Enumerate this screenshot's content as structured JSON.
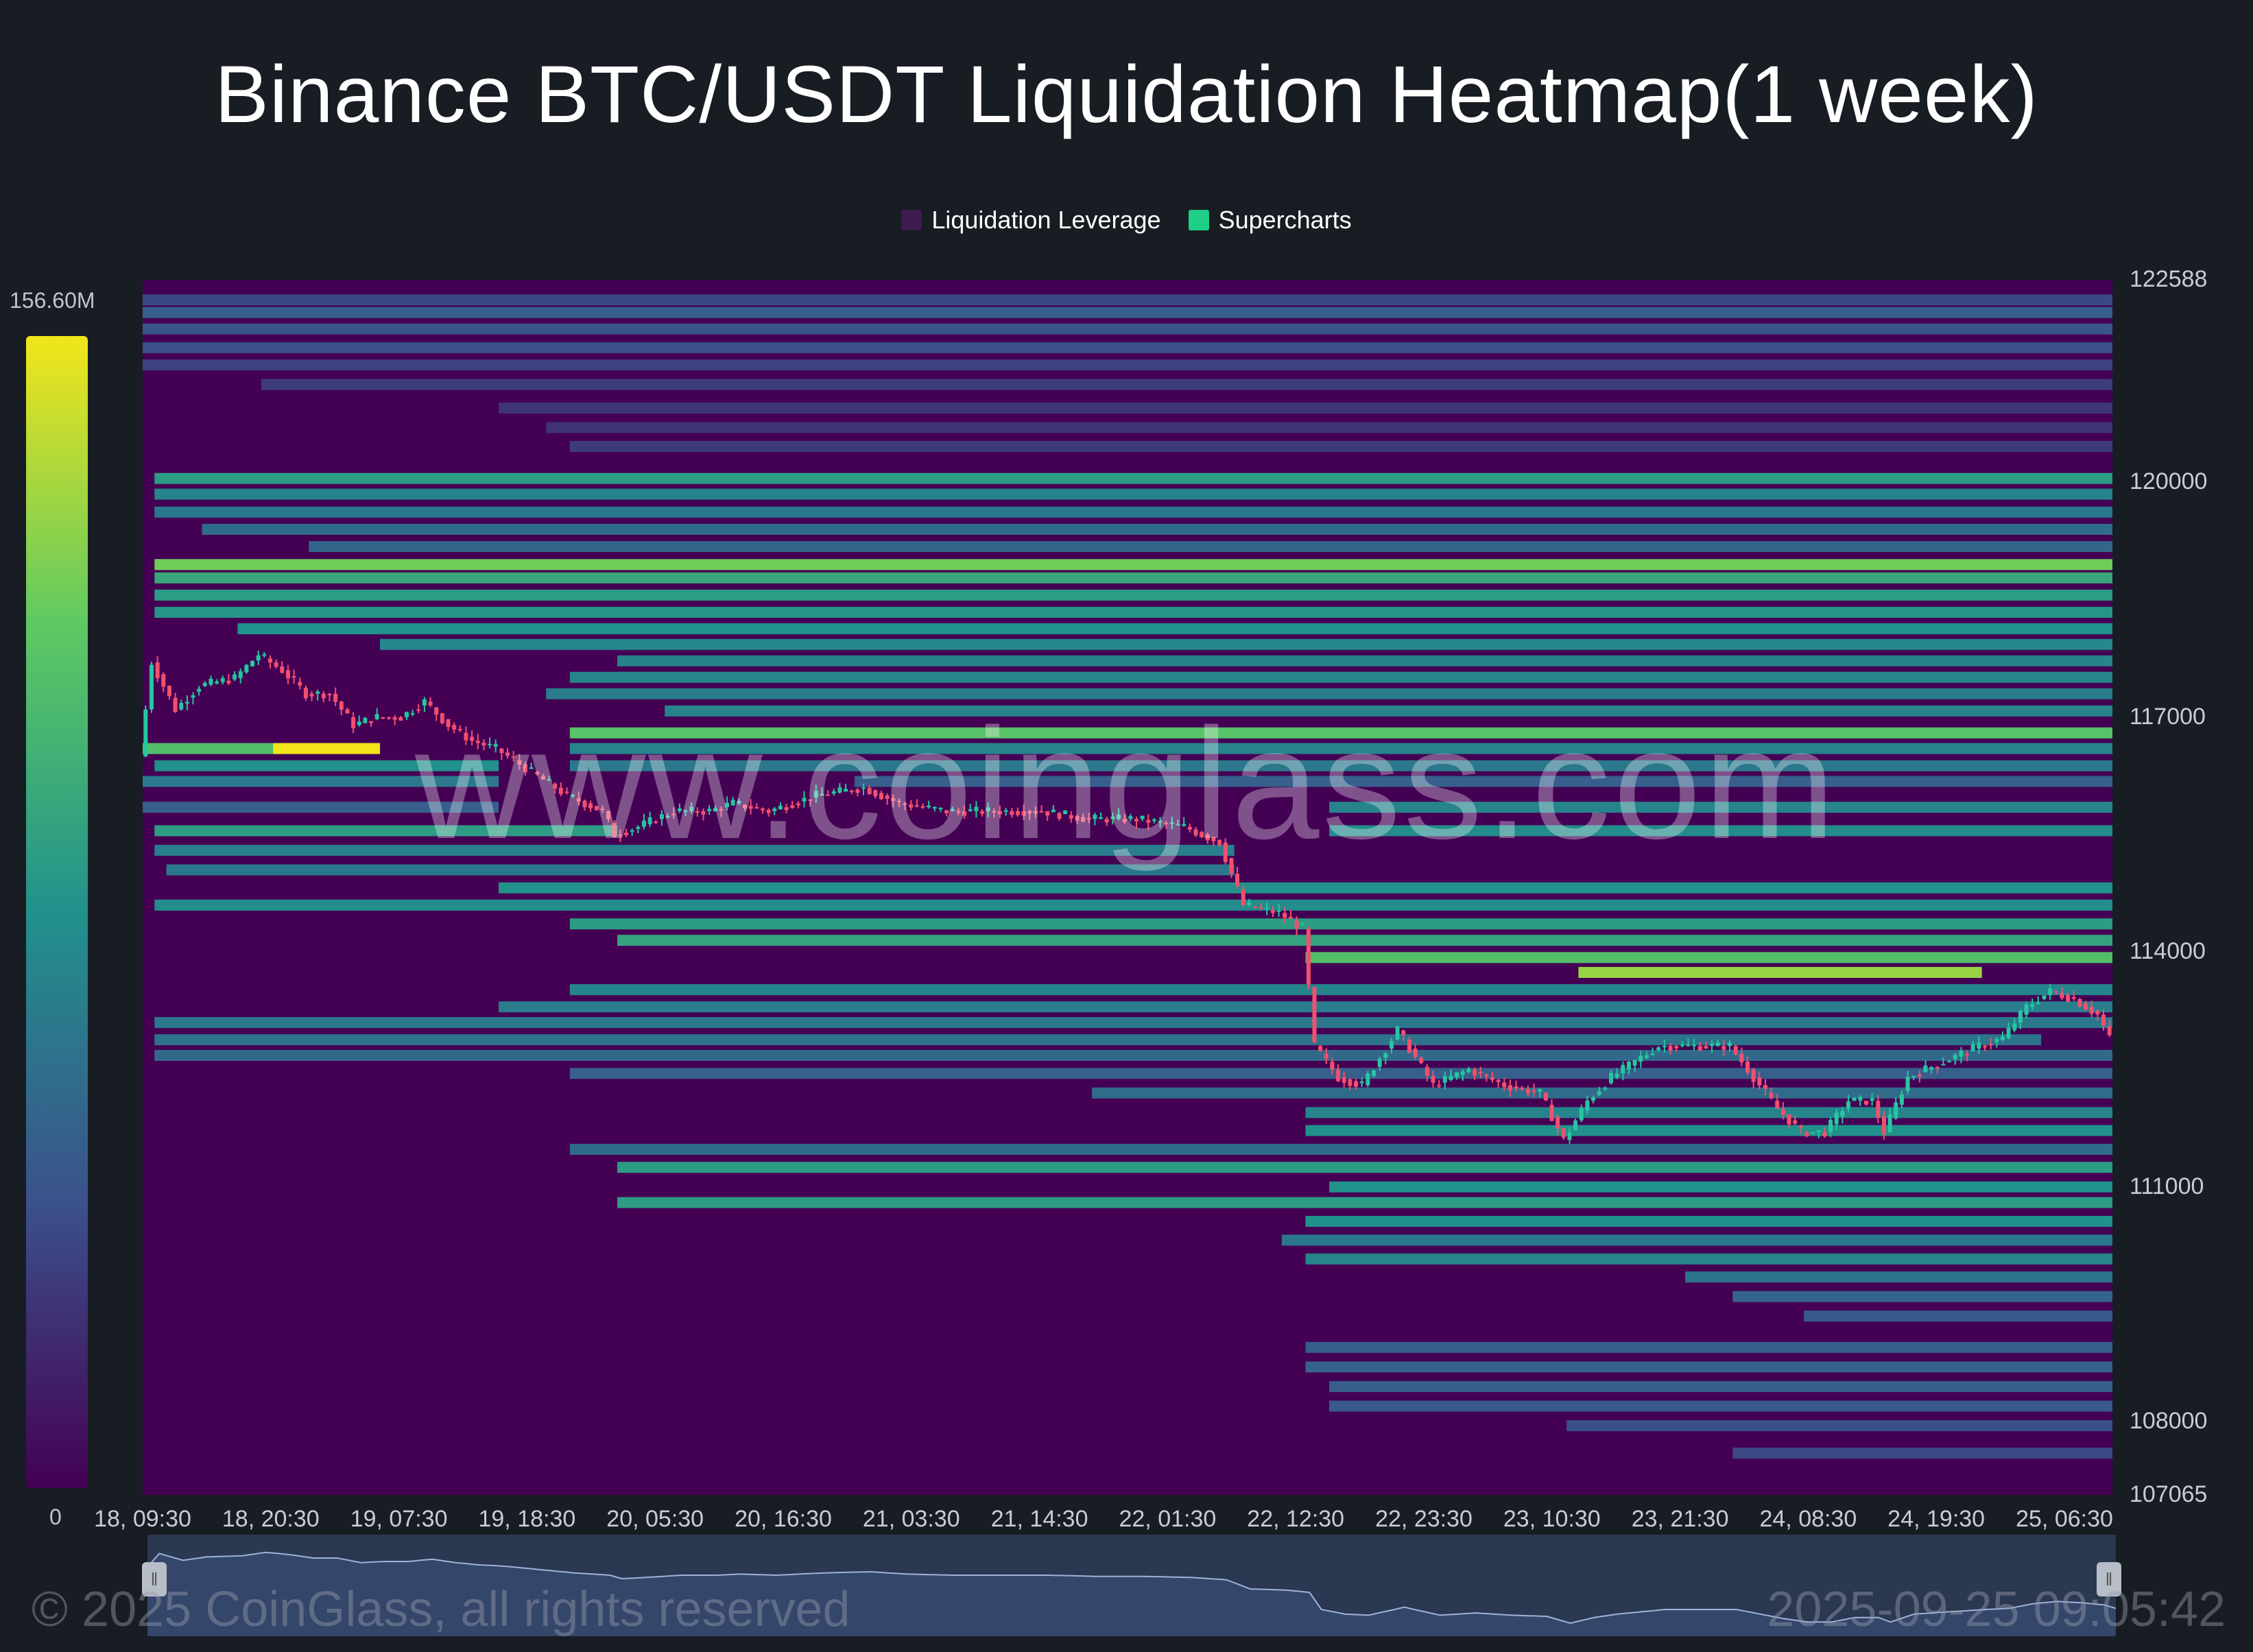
{
  "title": "Binance BTC/USDT Liquidation Heatmap(1 week)",
  "legend": [
    {
      "label": "Liquidation Leverage",
      "color": "#3d1a4f"
    },
    {
      "label": "Supercharts",
      "color": "#1ecf85"
    }
  ],
  "colorbar": {
    "max_label": "156.60M",
    "min_label": "0"
  },
  "watermark": "www.coinglass.com",
  "footer": {
    "copyright": "© 2025 CoinGlass, all rights reserved",
    "timestamp": "2025-09-25 09:05:42"
  },
  "colors": {
    "background": "#181c23",
    "heat_low": "#440154",
    "heat_high": "#f2e51a",
    "candle_up": "#26c6a0",
    "candle_down": "#f2506e"
  },
  "chart_data": {
    "type": "heatmap",
    "y_ticks": [
      122588,
      120000,
      117000,
      114000,
      111000,
      108000,
      107065
    ],
    "ylim": [
      107065,
      122588
    ],
    "x_ticks": [
      "18, 09:30",
      "18, 20:30",
      "19, 07:30",
      "19, 18:30",
      "20, 05:30",
      "20, 16:30",
      "21, 03:30",
      "21, 14:30",
      "22, 01:30",
      "22, 12:30",
      "22, 23:30",
      "23, 10:30",
      "23, 21:30",
      "24, 08:30",
      "24, 19:30",
      "25, 06:30"
    ],
    "xlim_hours": [
      0,
      166
    ],
    "colorscale_max": 156.6,
    "price_path": [
      [
        0,
        116500
      ],
      [
        1,
        117700
      ],
      [
        3,
        117100
      ],
      [
        5,
        117400
      ],
      [
        8,
        117500
      ],
      [
        10,
        117800
      ],
      [
        12,
        117600
      ],
      [
        14,
        117300
      ],
      [
        16,
        117300
      ],
      [
        18,
        116900
      ],
      [
        20,
        117000
      ],
      [
        22,
        117000
      ],
      [
        24,
        117200
      ],
      [
        26,
        116900
      ],
      [
        28,
        116700
      ],
      [
        30,
        116600
      ],
      [
        33,
        116300
      ],
      [
        36,
        116000
      ],
      [
        39,
        115800
      ],
      [
        40,
        115500
      ],
      [
        42,
        115600
      ],
      [
        45,
        115800
      ],
      [
        48,
        115800
      ],
      [
        50,
        115900
      ],
      [
        53,
        115800
      ],
      [
        57,
        116000
      ],
      [
        61,
        116100
      ],
      [
        64,
        115900
      ],
      [
        68,
        115800
      ],
      [
        72,
        115800
      ],
      [
        76,
        115800
      ],
      [
        80,
        115700
      ],
      [
        84,
        115700
      ],
      [
        88,
        115600
      ],
      [
        91,
        115400
      ],
      [
        93,
        114600
      ],
      [
        96,
        114500
      ],
      [
        98,
        114300
      ],
      [
        99,
        112800
      ],
      [
        101,
        112400
      ],
      [
        103,
        112300
      ],
      [
        106,
        113000
      ],
      [
        109,
        112300
      ],
      [
        112,
        112500
      ],
      [
        115,
        112300
      ],
      [
        118,
        112200
      ],
      [
        120,
        111600
      ],
      [
        122,
        112100
      ],
      [
        124,
        112400
      ],
      [
        126,
        112600
      ],
      [
        128,
        112800
      ],
      [
        131,
        112800
      ],
      [
        134,
        112800
      ],
      [
        136,
        112400
      ],
      [
        138,
        112000
      ],
      [
        140,
        111700
      ],
      [
        142,
        111700
      ],
      [
        144,
        112100
      ],
      [
        146,
        112100
      ],
      [
        147,
        111700
      ],
      [
        149,
        112400
      ],
      [
        152,
        112600
      ],
      [
        155,
        112800
      ],
      [
        157,
        112900
      ],
      [
        159,
        113300
      ],
      [
        161,
        113500
      ],
      [
        163,
        113400
      ],
      [
        165,
        113200
      ],
      [
        166,
        112900
      ]
    ],
    "liquidation_bands": [
      {
        "price": 122330,
        "from_h": 0,
        "to_h": 166,
        "intensity": 0.22
      },
      {
        "price": 122170,
        "from_h": 0,
        "to_h": 166,
        "intensity": 0.3
      },
      {
        "price": 121960,
        "from_h": 0,
        "to_h": 166,
        "intensity": 0.26
      },
      {
        "price": 121720,
        "from_h": 0,
        "to_h": 166,
        "intensity": 0.24
      },
      {
        "price": 121500,
        "from_h": 0,
        "to_h": 166,
        "intensity": 0.2
      },
      {
        "price": 121250,
        "from_h": 10,
        "to_h": 166,
        "intensity": 0.18
      },
      {
        "price": 120950,
        "from_h": 30,
        "to_h": 166,
        "intensity": 0.16
      },
      {
        "price": 120700,
        "from_h": 34,
        "to_h": 166,
        "intensity": 0.15
      },
      {
        "price": 120460,
        "from_h": 36,
        "to_h": 166,
        "intensity": 0.18
      },
      {
        "price": 120050,
        "from_h": 1,
        "to_h": 166,
        "intensity": 0.55
      },
      {
        "price": 119850,
        "from_h": 1,
        "to_h": 166,
        "intensity": 0.45
      },
      {
        "price": 119620,
        "from_h": 1,
        "to_h": 166,
        "intensity": 0.4
      },
      {
        "price": 119400,
        "from_h": 5,
        "to_h": 166,
        "intensity": 0.35
      },
      {
        "price": 119180,
        "from_h": 14,
        "to_h": 166,
        "intensity": 0.33
      },
      {
        "price": 118950,
        "from_h": 1,
        "to_h": 166,
        "intensity": 0.78
      },
      {
        "price": 118780,
        "from_h": 1,
        "to_h": 166,
        "intensity": 0.6
      },
      {
        "price": 118560,
        "from_h": 1,
        "to_h": 166,
        "intensity": 0.55
      },
      {
        "price": 118340,
        "from_h": 1,
        "to_h": 166,
        "intensity": 0.52
      },
      {
        "price": 118130,
        "from_h": 8,
        "to_h": 166,
        "intensity": 0.5
      },
      {
        "price": 117930,
        "from_h": 20,
        "to_h": 166,
        "intensity": 0.46
      },
      {
        "price": 117720,
        "from_h": 40,
        "to_h": 166,
        "intensity": 0.44
      },
      {
        "price": 117510,
        "from_h": 36,
        "to_h": 166,
        "intensity": 0.45
      },
      {
        "price": 117300,
        "from_h": 34,
        "to_h": 166,
        "intensity": 0.42
      },
      {
        "price": 117080,
        "from_h": 44,
        "to_h": 166,
        "intensity": 0.45
      },
      {
        "price": 116800,
        "from_h": 36,
        "to_h": 166,
        "intensity": 0.72
      },
      {
        "price": 116600,
        "from_h": 0,
        "to_h": 20,
        "intensity": 0.7
      },
      {
        "price": 116600,
        "from_h": 11,
        "to_h": 20,
        "intensity": 1.0
      },
      {
        "price": 116600,
        "from_h": 36,
        "to_h": 166,
        "intensity": 0.45
      },
      {
        "price": 116380,
        "from_h": 1,
        "to_h": 30,
        "intensity": 0.5
      },
      {
        "price": 116380,
        "from_h": 36,
        "to_h": 166,
        "intensity": 0.4
      },
      {
        "price": 116180,
        "from_h": 0,
        "to_h": 30,
        "intensity": 0.4
      },
      {
        "price": 116180,
        "from_h": 60,
        "to_h": 166,
        "intensity": 0.3
      },
      {
        "price": 115850,
        "from_h": 0,
        "to_h": 30,
        "intensity": 0.3
      },
      {
        "price": 115850,
        "from_h": 100,
        "to_h": 166,
        "intensity": 0.45
      },
      {
        "price": 115550,
        "from_h": 1,
        "to_h": 40,
        "intensity": 0.55
      },
      {
        "price": 115550,
        "from_h": 100,
        "to_h": 166,
        "intensity": 0.48
      },
      {
        "price": 115300,
        "from_h": 1,
        "to_h": 92,
        "intensity": 0.42
      },
      {
        "price": 115050,
        "from_h": 2,
        "to_h": 92,
        "intensity": 0.4
      },
      {
        "price": 114820,
        "from_h": 30,
        "to_h": 166,
        "intensity": 0.5
      },
      {
        "price": 114600,
        "from_h": 1,
        "to_h": 166,
        "intensity": 0.48
      },
      {
        "price": 114360,
        "from_h": 36,
        "to_h": 166,
        "intensity": 0.55
      },
      {
        "price": 114150,
        "from_h": 40,
        "to_h": 166,
        "intensity": 0.58
      },
      {
        "price": 113930,
        "from_h": 98,
        "to_h": 166,
        "intensity": 0.7
      },
      {
        "price": 113740,
        "from_h": 121,
        "to_h": 155,
        "intensity": 0.85
      },
      {
        "price": 113520,
        "from_h": 36,
        "to_h": 166,
        "intensity": 0.45
      },
      {
        "price": 113300,
        "from_h": 30,
        "to_h": 166,
        "intensity": 0.42
      },
      {
        "price": 113100,
        "from_h": 1,
        "to_h": 166,
        "intensity": 0.4
      },
      {
        "price": 112880,
        "from_h": 1,
        "to_h": 160,
        "intensity": 0.38
      },
      {
        "price": 112680,
        "from_h": 1,
        "to_h": 166,
        "intensity": 0.34
      },
      {
        "price": 112450,
        "from_h": 36,
        "to_h": 166,
        "intensity": 0.3
      },
      {
        "price": 112200,
        "from_h": 80,
        "to_h": 166,
        "intensity": 0.35
      },
      {
        "price": 111950,
        "from_h": 98,
        "to_h": 166,
        "intensity": 0.45
      },
      {
        "price": 111720,
        "from_h": 98,
        "to_h": 166,
        "intensity": 0.5
      },
      {
        "price": 111480,
        "from_h": 36,
        "to_h": 166,
        "intensity": 0.35
      },
      {
        "price": 111250,
        "from_h": 40,
        "to_h": 166,
        "intensity": 0.55
      },
      {
        "price": 111000,
        "from_h": 100,
        "to_h": 166,
        "intensity": 0.5
      },
      {
        "price": 110800,
        "from_h": 40,
        "to_h": 166,
        "intensity": 0.55
      },
      {
        "price": 110560,
        "from_h": 98,
        "to_h": 166,
        "intensity": 0.5
      },
      {
        "price": 110320,
        "from_h": 96,
        "to_h": 166,
        "intensity": 0.4
      },
      {
        "price": 110080,
        "from_h": 98,
        "to_h": 166,
        "intensity": 0.45
      },
      {
        "price": 109850,
        "from_h": 130,
        "to_h": 166,
        "intensity": 0.38
      },
      {
        "price": 109600,
        "from_h": 134,
        "to_h": 166,
        "intensity": 0.32
      },
      {
        "price": 109350,
        "from_h": 140,
        "to_h": 166,
        "intensity": 0.28
      },
      {
        "price": 108950,
        "from_h": 98,
        "to_h": 166,
        "intensity": 0.3
      },
      {
        "price": 108700,
        "from_h": 98,
        "to_h": 166,
        "intensity": 0.32
      },
      {
        "price": 108450,
        "from_h": 100,
        "to_h": 166,
        "intensity": 0.3
      },
      {
        "price": 108200,
        "from_h": 100,
        "to_h": 166,
        "intensity": 0.28
      },
      {
        "price": 107950,
        "from_h": 120,
        "to_h": 166,
        "intensity": 0.24
      },
      {
        "price": 107600,
        "from_h": 134,
        "to_h": 166,
        "intensity": 0.22
      }
    ]
  }
}
